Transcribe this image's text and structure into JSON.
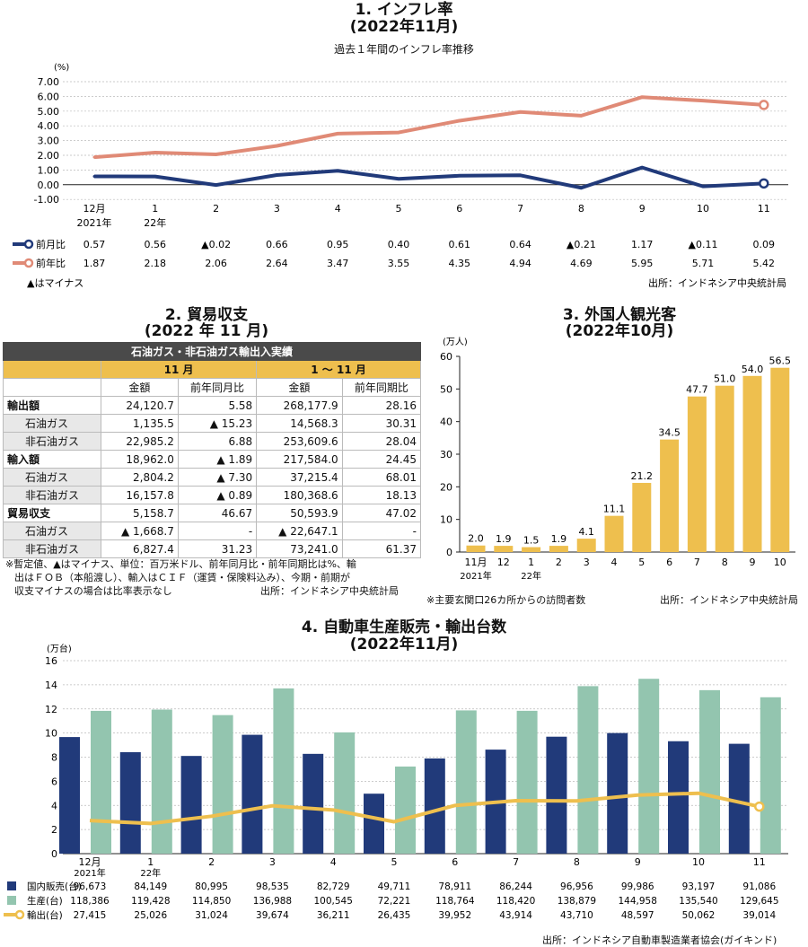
{
  "infl": {
    "title": "1. インフレ率",
    "subtitle": "(2022年11月)",
    "caption": "過去１年間のインフレ率推移",
    "unit": "(%)",
    "source": "出所：インドネシア中央統計局",
    "minus_note": "▲はマイナス",
    "mom_disp": [
      "0.57",
      "0.56",
      "▲0.02",
      "0.66",
      "0.95",
      "0.40",
      "0.61",
      "0.64",
      "▲0.21",
      "1.17",
      "▲0.11",
      "0.09"
    ],
    "yoy_disp": [
      "1.87",
      "2.18",
      "2.06",
      "2.64",
      "3.47",
      "3.55",
      "4.35",
      "4.94",
      "4.69",
      "5.95",
      "5.71",
      "5.42"
    ],
    "colors": {
      "mom": "#213a7a",
      "yoy": "#e08a76"
    }
  },
  "trade": {
    "title": "2. 貿易収支",
    "subtitle": "(2022 年 11 月)",
    "header": "石油ガス・非石油ガス輸出入実績",
    "period1": "11 月",
    "period2": "1 ～ 11 月",
    "cols": [
      "金額",
      "前年同月比",
      "金額",
      "前年同期比"
    ],
    "rows": [
      {
        "label": "輸出額",
        "level": 0,
        "cells": [
          "24,120.7",
          "5.58",
          "268,177.9",
          "28.16"
        ]
      },
      {
        "label": "石油ガス",
        "level": 1,
        "cells": [
          "1,135.5",
          "▲ 15.23",
          "14,568.3",
          "30.31"
        ]
      },
      {
        "label": "非石油ガス",
        "level": 1,
        "cells": [
          "22,985.2",
          "6.88",
          "253,609.6",
          "28.04"
        ]
      },
      {
        "label": "輸入額",
        "level": 0,
        "cells": [
          "18,962.0",
          "▲ 1.89",
          "217,584.0",
          "24.45"
        ]
      },
      {
        "label": "石油ガス",
        "level": 1,
        "cells": [
          "2,804.2",
          "▲ 7.30",
          "37,215.4",
          "68.01"
        ]
      },
      {
        "label": "非石油ガス",
        "level": 1,
        "cells": [
          "16,157.8",
          "▲ 0.89",
          "180,368.6",
          "18.13"
        ]
      },
      {
        "label": "貿易収支",
        "level": 0,
        "cells": [
          "5,158.7",
          "46.67",
          "50,593.9",
          "47.02"
        ]
      },
      {
        "label": "石油ガス",
        "level": 1,
        "cells": [
          "▲ 1,668.7",
          "-",
          "▲ 22,647.1",
          "-"
        ]
      },
      {
        "label": "非石油ガス",
        "level": 1,
        "cells": [
          "6,827.4",
          "31.23",
          "73,241.0",
          "61.37"
        ]
      }
    ],
    "note1": "※暫定値、▲はマイナス、単位：百万米ドル、前年同月比・前年同期比は%、輸",
    "note2": "出はＦＯＢ（本船渡し）、輸入はＣＩＦ（運賃・保険料込み）、今期・前期が",
    "note3": "収支マイナスの場合は比率表示なし",
    "source": "出所：インドネシア中央統計局"
  },
  "tour": {
    "title": "3. 外国人観光客",
    "subtitle": "(2022年10月)",
    "unit": "(万人)",
    "note": "※主要玄関口26カ所からの訪問者数",
    "source": "出所：インドネシア中央統計局",
    "value_labels": [
      "2.0",
      "1.9",
      "1.5",
      "1.9",
      "4.1",
      "11.1",
      "21.2",
      "34.5",
      "47.7",
      "51.0",
      "54.0",
      "56.5"
    ],
    "year_labels": {
      "2021": "2021年",
      "2022": "22年"
    },
    "color": "#eebf4e"
  },
  "auto": {
    "title": "4. 自動車生産販売・輸出台数",
    "subtitle": "(2022年11月)",
    "unit": "(万台)",
    "legend_domestic": "国内販売(台)",
    "legend_production": "生産(台)",
    "legend_export": "輸出(台)",
    "domestic_disp": [
      "96,673",
      "84,149",
      "80,995",
      "98,535",
      "82,729",
      "49,711",
      "78,911",
      "86,244",
      "96,956",
      "99,986",
      "93,197",
      "91,086"
    ],
    "production_disp": [
      "118,386",
      "119,428",
      "114,850",
      "136,988",
      "100,545",
      "72,221",
      "118,764",
      "118,420",
      "138,879",
      "144,958",
      "135,540",
      "129,645"
    ],
    "export_disp": [
      "27,415",
      "25,026",
      "31,024",
      "39,674",
      "36,211",
      "26,435",
      "39,952",
      "43,914",
      "43,710",
      "48,597",
      "50,062",
      "39,014"
    ],
    "year_labels": {
      "2021": "2021年",
      "2022": "22年"
    },
    "source": "出所：インドネシア自動車製造業者協会(ガイキンド)",
    "colors": {
      "domestic": "#213a7a",
      "production": "#93c5af",
      "export": "#eebf4e"
    }
  },
  "chart_data": [
    {
      "type": "line",
      "title": "1. インフレ率",
      "x": [
        "12月",
        "1",
        "2",
        "3",
        "4",
        "5",
        "6",
        "7",
        "8",
        "9",
        "10",
        "11"
      ],
      "ylim": [
        -1,
        7
      ],
      "yticks": [
        "7.00",
        "6.00",
        "5.00",
        "4.00",
        "3.00",
        "2.00",
        "1.00",
        "0.00",
        "-1.00"
      ],
      "series": [
        {
          "name": "前月比",
          "values": [
            0.57,
            0.56,
            -0.02,
            0.66,
            0.95,
            0.4,
            0.61,
            0.64,
            -0.21,
            1.17,
            -0.11,
            0.09
          ]
        },
        {
          "name": "前年比",
          "values": [
            1.87,
            2.18,
            2.06,
            2.64,
            3.47,
            3.55,
            4.35,
            4.94,
            4.69,
            5.95,
            5.71,
            5.42
          ]
        }
      ],
      "grid": true
    },
    {
      "type": "bar",
      "title": "3. 外国人観光客",
      "categories": [
        "11月",
        "12",
        "1",
        "2",
        "3",
        "4",
        "5",
        "6",
        "7",
        "8",
        "9",
        "10"
      ],
      "values": [
        2.0,
        1.9,
        1.5,
        1.9,
        4.1,
        11.1,
        21.2,
        34.5,
        47.7,
        51.0,
        54.0,
        56.5
      ],
      "ylim": [
        0,
        60
      ],
      "yticks": [
        "60",
        "50",
        "40",
        "30",
        "20",
        "10",
        "0"
      ]
    },
    {
      "type": "bar",
      "title": "4. 自動車生産販売・輸出台数",
      "categories": [
        "12月",
        "1",
        "2",
        "3",
        "4",
        "5",
        "6",
        "7",
        "8",
        "9",
        "10",
        "11"
      ],
      "ylim": [
        0,
        16
      ],
      "yticks": [
        "16",
        "14",
        "12",
        "10",
        "8",
        "6",
        "4",
        "2",
        "0"
      ],
      "series": [
        {
          "name": "国内販売(台)",
          "values": [
            96673,
            84149,
            80995,
            98535,
            82729,
            49711,
            78911,
            86244,
            96956,
            99986,
            93197,
            91086
          ]
        },
        {
          "name": "生産(台)",
          "values": [
            118386,
            119428,
            114850,
            136988,
            100545,
            72221,
            118764,
            118420,
            138879,
            144958,
            135540,
            129645
          ]
        },
        {
          "name": "輸出(台)",
          "values": [
            27415,
            25026,
            31024,
            39674,
            36211,
            26435,
            39952,
            43914,
            43710,
            48597,
            50062,
            39014
          ]
        }
      ]
    }
  ]
}
